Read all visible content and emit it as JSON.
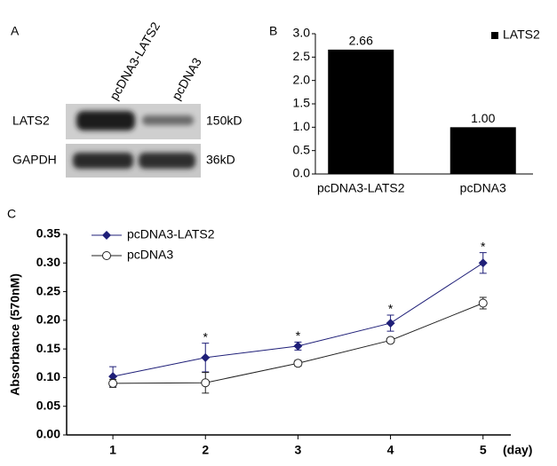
{
  "panel_letters": [
    "A",
    "B",
    "C"
  ],
  "blot": {
    "lanes": [
      "pcDNA3-LATS2",
      "pcDNA3"
    ],
    "rows": [
      {
        "label": "LATS2",
        "size": "150kD"
      },
      {
        "label": "GAPDH",
        "size": "36kD"
      }
    ]
  },
  "chart_data": [
    {
      "type": "bar",
      "categories": [
        "pcDNA3-LATS2",
        "pcDNA3"
      ],
      "series": [
        {
          "name": "LATS2",
          "color": "#000000",
          "values": [
            2.66,
            1.0
          ],
          "value_labels": [
            "2.66",
            "1.00"
          ]
        }
      ],
      "ylim": [
        0,
        3
      ],
      "yticks": [
        {
          "value": 0,
          "label": "0.0"
        },
        0.5,
        {
          "value": 1,
          "label": "1.0"
        },
        1.5,
        {
          "value": 2,
          "label": "2.0"
        },
        2.5,
        {
          "value": 3,
          "label": "3.0"
        }
      ],
      "legend": "top-right"
    },
    {
      "type": "line",
      "x": [
        1,
        2,
        3,
        4,
        5
      ],
      "x_label": "(day)",
      "y_label": "Absorbance (570nM)",
      "xlim": [
        0.5,
        5.3
      ],
      "xticks": [
        1,
        2,
        3,
        4,
        5
      ],
      "ylim": [
        0,
        0.35
      ],
      "yticks": [
        {
          "value": 0,
          "label": "0.00"
        },
        0.05,
        {
          "value": 0.1,
          "label": "0.10"
        },
        0.15,
        {
          "value": 0.2,
          "label": "0.20"
        },
        0.25,
        {
          "value": 0.3,
          "label": "0.30"
        },
        0.35
      ],
      "series": [
        {
          "name": "pcDNA3-LATS2",
          "color": "#1f1f78",
          "marker": "diamond",
          "values": [
            0.102,
            0.135,
            0.155,
            0.195,
            0.3
          ],
          "errors": [
            0.017,
            0.025,
            0.007,
            0.014,
            0.018
          ]
        },
        {
          "name": "pcDNA3",
          "color": "#222222",
          "marker": "circle",
          "values": [
            0.09,
            0.091,
            0.125,
            0.165,
            0.23
          ],
          "errors": [
            0.007,
            0.018,
            0.005,
            0.004,
            0.01
          ]
        }
      ],
      "annotations": [
        {
          "x": 2,
          "text": "*"
        },
        {
          "x": 3,
          "text": "*"
        },
        {
          "x": 4,
          "text": "*"
        },
        {
          "x": 5,
          "text": "*"
        }
      ],
      "legend": "top-left"
    }
  ]
}
